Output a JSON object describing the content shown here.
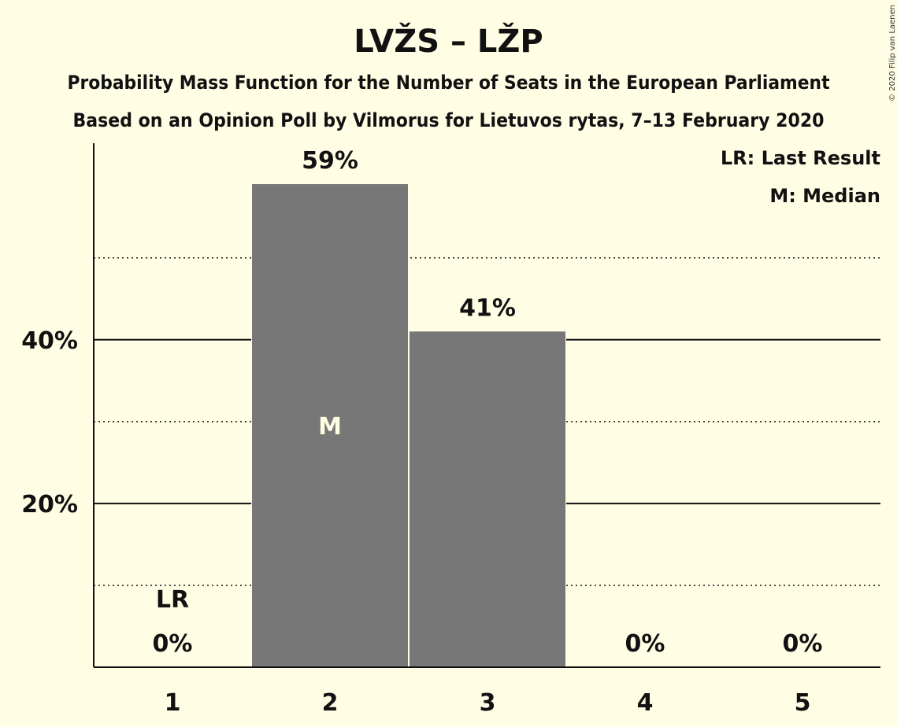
{
  "header": {
    "title": "LVŽS – LŽP",
    "subtitle1": "Probability Mass Function for the Number of Seats in the European Parliament",
    "subtitle2": "Based on an Opinion Poll by Vilmorus for Lietuvos rytas, 7–13 February 2020",
    "copyright": "© 2020 Filip van Laenen"
  },
  "legend": {
    "last_result": "LR: Last Result",
    "median": "M: Median"
  },
  "chart_data": {
    "type": "bar",
    "categories": [
      "1",
      "2",
      "3",
      "4",
      "5"
    ],
    "values": [
      0,
      59,
      41,
      0,
      0
    ],
    "value_labels": [
      "0%",
      "59%",
      "41%",
      "0%",
      "0%"
    ],
    "ylim": [
      0,
      64
    ],
    "yticks_major": [
      {
        "value": 20,
        "label": "20%"
      },
      {
        "value": 40,
        "label": "40%"
      }
    ],
    "yticks_minor": [
      10,
      30,
      50
    ],
    "median_index": 1,
    "median_marker": "M",
    "last_result_index": 0,
    "last_result_marker": "LR",
    "colors": {
      "bar": "#777777",
      "background": "#FFFDE4",
      "axis": "#111111"
    }
  }
}
